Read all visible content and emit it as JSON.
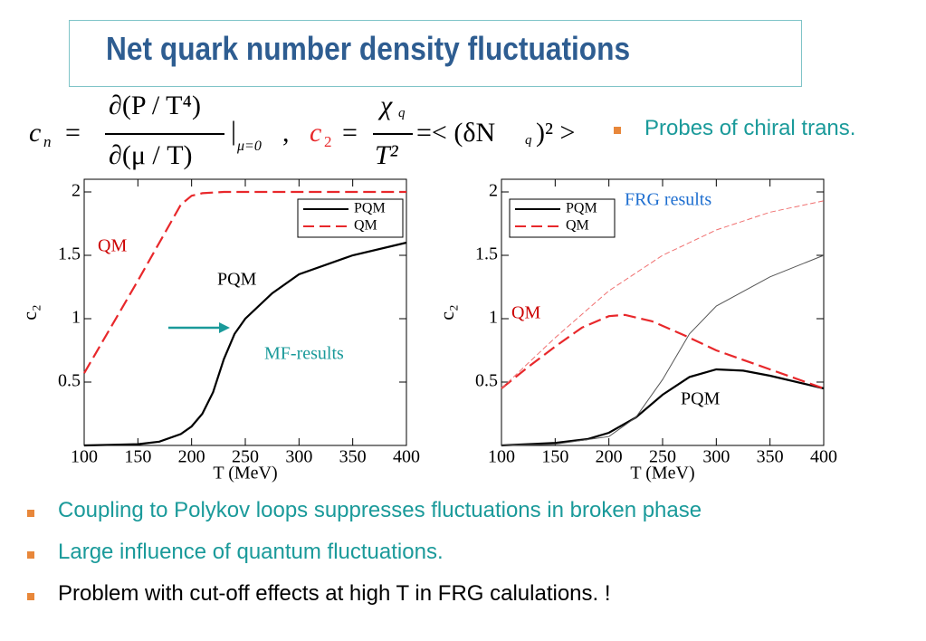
{
  "header": {
    "title": "Net quark number density fluctuations"
  },
  "formula": {
    "c": "c",
    "n": "n",
    "eq": "=",
    "num1": "∂(P / T⁴)",
    "den1": "∂(μ / T)",
    "bar": "|",
    "eval": "μ=0",
    "sep": ",",
    "c2": "c",
    "two": "2",
    "chi": "χ",
    "q": "q",
    "den2": "T²",
    "rhs": "=< (δN",
    "rhsq": "q",
    "rhsend": ")² >"
  },
  "side_bullet": "Probes of chiral trans.",
  "bullets": [
    {
      "text": "Coupling to Polykov loops suppresses fluctuations in broken phase",
      "color": "#1a9a9a"
    },
    {
      "text": "Large influence of quantum fluctuations.",
      "color": "#1a9a9a"
    },
    {
      "text": "Problem with cut-off effects at high T in FRG calulations. !",
      "color": "#000000"
    }
  ],
  "chart_data": [
    {
      "type": "line",
      "xlabel": "T (MeV)",
      "ylabel": "c₂",
      "xlim": [
        100,
        400
      ],
      "ylim": [
        0,
        2.1
      ],
      "xticks": [
        100,
        150,
        200,
        250,
        300,
        350,
        400
      ],
      "yticks": [
        0.5,
        1,
        1.5,
        2
      ],
      "legend": "upper right",
      "series": [
        {
          "name": "PQM",
          "color": "#000000",
          "style": "solid",
          "weight": "thick",
          "x": [
            100,
            150,
            170,
            190,
            200,
            210,
            220,
            230,
            240,
            250,
            275,
            300,
            350,
            400
          ],
          "values": [
            0,
            0.01,
            0.03,
            0.09,
            0.15,
            0.25,
            0.42,
            0.68,
            0.88,
            1.0,
            1.2,
            1.35,
            1.5,
            1.6
          ]
        },
        {
          "name": "QM",
          "color": "#e8282b",
          "style": "dashed",
          "weight": "thick",
          "x": [
            100,
            150,
            190,
            200,
            210,
            230,
            400
          ],
          "values": [
            0.57,
            1.3,
            1.9,
            1.97,
            1.99,
            2,
            2
          ]
        }
      ],
      "annotations": [
        {
          "text": "QM",
          "color": "#cc0000"
        },
        {
          "text": "PQM",
          "color": "#000000"
        },
        {
          "text": "MF-results",
          "color": "#1a9a9a"
        }
      ]
    },
    {
      "type": "line",
      "xlabel": "T (MeV)",
      "ylabel": "c₂",
      "xlim": [
        100,
        400
      ],
      "ylim": [
        0,
        2.1
      ],
      "xticks": [
        100,
        150,
        200,
        250,
        300,
        350,
        400
      ],
      "yticks": [
        0.5,
        1,
        1.5,
        2
      ],
      "legend": "upper left",
      "series": [
        {
          "name": "PQM",
          "color": "#000000",
          "style": "solid",
          "weight": "thick",
          "x": [
            100,
            150,
            180,
            200,
            225,
            250,
            275,
            300,
            325,
            350,
            400
          ],
          "values": [
            0,
            0.02,
            0.05,
            0.1,
            0.22,
            0.4,
            0.54,
            0.6,
            0.59,
            0.55,
            0.45
          ]
        },
        {
          "name": "QM",
          "color": "#e8282b",
          "style": "dashed",
          "weight": "thick",
          "x": [
            100,
            125,
            150,
            175,
            200,
            215,
            240,
            270,
            300,
            350,
            400
          ],
          "values": [
            0.45,
            0.62,
            0.78,
            0.93,
            1.02,
            1.03,
            0.98,
            0.87,
            0.75,
            0.6,
            0.45
          ]
        },
        {
          "name": "PQM",
          "color": "#555555",
          "style": "solid",
          "weight": "thin",
          "x": [
            100,
            150,
            200,
            225,
            250,
            275,
            300,
            350,
            400
          ],
          "values": [
            0,
            0.01,
            0.07,
            0.22,
            0.52,
            0.88,
            1.1,
            1.33,
            1.5
          ]
        },
        {
          "name": "QM",
          "color": "#f07070",
          "style": "dashed",
          "weight": "thin",
          "x": [
            100,
            150,
            200,
            250,
            300,
            350,
            400
          ],
          "values": [
            0.45,
            0.85,
            1.22,
            1.5,
            1.7,
            1.84,
            1.93
          ]
        }
      ],
      "annotations": [
        {
          "text": "FRG results",
          "color": "#1f6fd0"
        },
        {
          "text": "QM",
          "color": "#cc0000"
        },
        {
          "text": "PQM",
          "color": "#000000"
        }
      ]
    }
  ]
}
